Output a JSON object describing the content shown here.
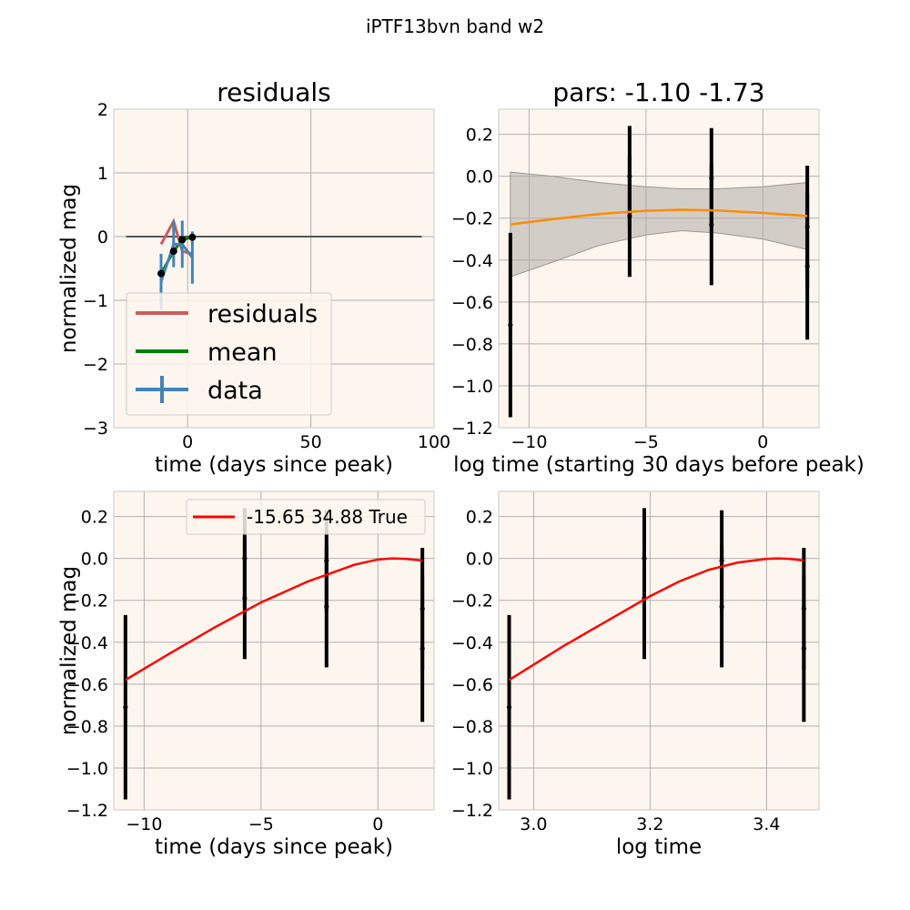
{
  "figure": {
    "suptitle": "iPTF13bvn band w2"
  },
  "chart_data": [
    {
      "id": "residuals",
      "type": "line",
      "title": "residuals",
      "xlabel": "time (days since peak)",
      "ylabel": "normalized mag",
      "xlim": [
        -30,
        100
      ],
      "ylim": [
        -3,
        2
      ],
      "xticks": [
        0,
        50,
        100
      ],
      "yticks": [
        -3,
        -2,
        -1,
        0,
        1,
        2
      ],
      "grid": true,
      "legend": {
        "placement": "lower-left",
        "entries": [
          "residuals",
          "mean",
          "data"
        ]
      },
      "zero_line": {
        "x": [
          -25,
          95
        ],
        "y": 0,
        "color": "#555555"
      },
      "series": [
        {
          "name": "residuals",
          "color": "#cd5c5c",
          "x": [
            -10.8,
            -5.7,
            -2.2,
            1.9
          ],
          "y": [
            -0.12,
            0.24,
            -0.23,
            -0.27
          ]
        },
        {
          "name": "mean",
          "color": "#008000",
          "x": [
            -10.8,
            -5.7,
            -2.2,
            1.9
          ],
          "y": [
            -0.58,
            -0.23,
            -0.05,
            -0.01
          ]
        },
        {
          "name": "data",
          "color": "#4682b4",
          "x": [
            -10.8,
            -5.7,
            -2.2,
            1.9
          ],
          "y": [
            -0.71,
            -0.12,
            -0.12,
            -0.33
          ],
          "yerr": [
            0.44,
            0.36,
            0.37,
            0.41
          ]
        }
      ],
      "markers": {
        "x": [
          -10.8,
          -5.7,
          -2.2,
          1.9
        ],
        "y": [
          -0.58,
          -0.23,
          -0.05,
          -0.01
        ]
      }
    },
    {
      "id": "pars",
      "type": "line",
      "title": "pars: -1.10 -1.73",
      "xlabel": "log time (starting 30 days before peak)",
      "ylabel": "",
      "xlim": [
        -11.3,
        2.4
      ],
      "ylim": [
        -1.2,
        0.32
      ],
      "xticks": [
        -10,
        -5,
        0
      ],
      "yticks": [
        -1.2,
        -1.0,
        -0.8,
        -0.6,
        -0.4,
        -0.2,
        0.0,
        0.2
      ],
      "grid": true,
      "errorbars": [
        {
          "x": -10.8,
          "y": -0.71,
          "yerr": 0.44
        },
        {
          "x": -5.7,
          "y": 0.0,
          "yerr": 0.24
        },
        {
          "x": -5.7,
          "y": -0.19,
          "yerr": 0.29
        },
        {
          "x": -2.2,
          "y": -0.01,
          "yerr": 0.24
        },
        {
          "x": -2.2,
          "y": -0.23,
          "yerr": 0.29
        },
        {
          "x": 1.9,
          "y": -0.24,
          "yerr": 0.29
        },
        {
          "x": 1.9,
          "y": -0.43,
          "yerr": 0.35
        }
      ],
      "curve": {
        "color": "#ff8c00",
        "x": [
          -10.8,
          -9,
          -7,
          -5,
          -3.5,
          -2,
          0,
          1.9
        ],
        "y": [
          -0.23,
          -0.205,
          -0.18,
          -0.165,
          -0.16,
          -0.163,
          -0.175,
          -0.19
        ]
      },
      "band": {
        "color": "#b0aca8",
        "x": [
          -10.8,
          -9,
          -7,
          -5,
          -3.5,
          -2,
          0,
          1.9
        ],
        "upper": [
          0.02,
          0.0,
          -0.03,
          -0.05,
          -0.06,
          -0.06,
          -0.05,
          -0.03
        ],
        "lower": [
          -0.48,
          -0.41,
          -0.33,
          -0.28,
          -0.26,
          -0.27,
          -0.3,
          -0.35
        ]
      }
    },
    {
      "id": "fit-time",
      "type": "line",
      "title": "",
      "xlabel": "time (days since peak)",
      "ylabel": "normalized mag",
      "xlim": [
        -11.3,
        2.4
      ],
      "ylim": [
        -1.2,
        0.32
      ],
      "xticks": [
        -10,
        -5,
        0
      ],
      "yticks": [
        -1.2,
        -1.0,
        -0.8,
        -0.6,
        -0.4,
        -0.2,
        0.0,
        0.2
      ],
      "grid": true,
      "legend": {
        "placement": "top-right",
        "entries": [
          "-15.65 34.88 True"
        ]
      },
      "errorbars": [
        {
          "x": -10.8,
          "y": -0.71,
          "yerr": 0.44
        },
        {
          "x": -5.7,
          "y": 0.0,
          "yerr": 0.24
        },
        {
          "x": -5.7,
          "y": -0.19,
          "yerr": 0.29
        },
        {
          "x": -2.2,
          "y": -0.01,
          "yerr": 0.24
        },
        {
          "x": -2.2,
          "y": -0.23,
          "yerr": 0.29
        },
        {
          "x": 1.9,
          "y": -0.24,
          "yerr": 0.29
        },
        {
          "x": 1.9,
          "y": -0.43,
          "yerr": 0.35
        }
      ],
      "curve": {
        "name": "-15.65 34.88 True",
        "color": "#ff0000",
        "x": [
          -10.8,
          -9,
          -7,
          -5,
          -3,
          -1,
          0,
          0.6,
          1.2,
          1.9
        ],
        "y": [
          -0.58,
          -0.46,
          -0.33,
          -0.21,
          -0.11,
          -0.03,
          -0.005,
          0.0,
          -0.002,
          -0.01
        ]
      }
    },
    {
      "id": "fit-logtime",
      "type": "line",
      "title": "",
      "xlabel": "log time",
      "ylabel": "",
      "xlim": [
        2.94,
        3.49
      ],
      "ylim": [
        -1.2,
        0.32
      ],
      "xticks": [
        3.0,
        3.2,
        3.4
      ],
      "xticklabels": [
        "3.0",
        "3.2",
        "3.4"
      ],
      "yticks": [
        -1.2,
        -1.0,
        -0.8,
        -0.6,
        -0.4,
        -0.2,
        0.0,
        0.2
      ],
      "grid": true,
      "errorbars": [
        {
          "x": 2.958,
          "y": -0.71,
          "yerr": 0.44
        },
        {
          "x": 3.19,
          "y": 0.0,
          "yerr": 0.24
        },
        {
          "x": 3.19,
          "y": -0.19,
          "yerr": 0.29
        },
        {
          "x": 3.323,
          "y": -0.01,
          "yerr": 0.24
        },
        {
          "x": 3.323,
          "y": -0.23,
          "yerr": 0.29
        },
        {
          "x": 3.464,
          "y": -0.24,
          "yerr": 0.29
        },
        {
          "x": 3.464,
          "y": -0.43,
          "yerr": 0.35
        }
      ],
      "curve": {
        "color": "#ff0000",
        "x": [
          2.958,
          3.05,
          3.15,
          3.2,
          3.25,
          3.3,
          3.35,
          3.4,
          3.42,
          3.44,
          3.464
        ],
        "y": [
          -0.58,
          -0.42,
          -0.26,
          -0.18,
          -0.11,
          -0.055,
          -0.02,
          -0.002,
          0.0,
          -0.002,
          -0.01
        ]
      }
    }
  ]
}
